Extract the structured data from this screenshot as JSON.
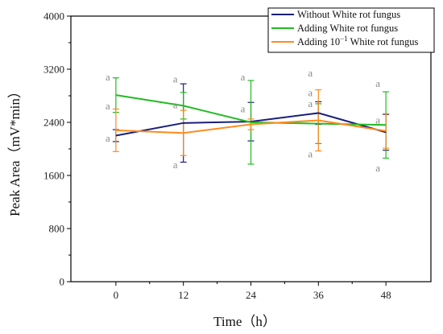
{
  "chart_data": {
    "type": "line",
    "xlabel": "Time（h）",
    "ylabel": "Peak Area（mV*min）",
    "x": [
      0,
      12,
      24,
      36,
      48
    ],
    "xlim": [
      -8,
      56
    ],
    "ylim": [
      0,
      4000
    ],
    "xticks": [
      "0",
      "12",
      "24",
      "36",
      "48"
    ],
    "yticks": [
      "0",
      "800",
      "1600",
      "2400",
      "3200",
      "4000"
    ],
    "grid": false,
    "legend_position": "top-right",
    "series": [
      {
        "name": "Without White rot fungus",
        "color": "#1a1f7a",
        "values": [
          2200,
          2390,
          2410,
          2540,
          2250
        ],
        "errors": [
          90,
          590,
          290,
          170,
          270
        ]
      },
      {
        "name": "Adding White rot fungus",
        "color": "#22bb22",
        "values": [
          2810,
          2650,
          2400,
          2380,
          2360
        ],
        "errors": [
          260,
          200,
          630,
          300,
          500
        ]
      },
      {
        "name_parts": [
          "Adding 10",
          "−1",
          " White rot fungus"
        ],
        "name": "Adding 10−1 White rot fungus",
        "color": "#ff8a1e",
        "values": [
          2280,
          2240,
          2370,
          2430,
          2270
        ],
        "errors": [
          320,
          340,
          80,
          460,
          260
        ]
      }
    ],
    "significance_labels": [
      {
        "x": 0,
        "y": 3080,
        "text": "a"
      },
      {
        "x": 0,
        "y": 2640,
        "text": "a"
      },
      {
        "x": 0,
        "y": 2160,
        "text": "a"
      },
      {
        "x": 12,
        "y": 3050,
        "text": "a"
      },
      {
        "x": 12,
        "y": 2660,
        "text": "a"
      },
      {
        "x": 12,
        "y": 1760,
        "text": "a"
      },
      {
        "x": 24,
        "y": 3080,
        "text": "a"
      },
      {
        "x": 24,
        "y": 2600,
        "text": "a"
      },
      {
        "x": 36,
        "y": 3140,
        "text": "a"
      },
      {
        "x": 36,
        "y": 2840,
        "text": "a"
      },
      {
        "x": 36,
        "y": 2680,
        "text": "a"
      },
      {
        "x": 36,
        "y": 1920,
        "text": "a"
      },
      {
        "x": 48,
        "y": 2980,
        "text": "a"
      },
      {
        "x": 48,
        "y": 2430,
        "text": "a"
      },
      {
        "x": 48,
        "y": 1710,
        "text": "a"
      }
    ]
  }
}
